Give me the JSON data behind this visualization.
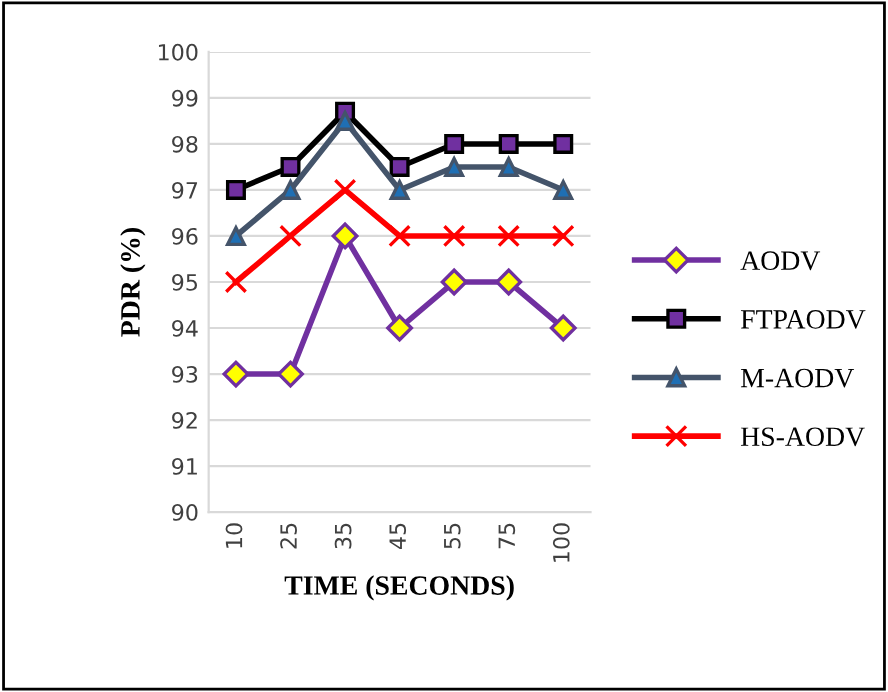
{
  "chart_data": {
    "type": "line",
    "xlabel": "TIME (SECONDS)",
    "ylabel": "PDR (%)",
    "categories": [
      "10",
      "25",
      "35",
      "45",
      "55",
      "75",
      "100"
    ],
    "series": [
      {
        "name": "AODV",
        "color": "#7030a0",
        "marker": "diamond",
        "values": [
          93,
          93,
          96,
          94,
          95,
          95,
          94
        ]
      },
      {
        "name": "FTPAODV",
        "color": "#000000",
        "marker": "square",
        "values": [
          97,
          97.5,
          98.7,
          97.5,
          98,
          98,
          98
        ]
      },
      {
        "name": "M-AODV",
        "color": "#44546a",
        "marker": "triangle",
        "values": [
          96,
          97,
          98.5,
          97,
          97.5,
          97.5,
          97
        ]
      },
      {
        "name": "HS-AODV",
        "color": "#ff0000",
        "marker": "cross",
        "values": [
          95,
          96,
          97,
          96,
          96,
          96,
          96
        ]
      }
    ],
    "ylim": [
      90,
      100
    ],
    "yticks": [
      90,
      91,
      92,
      93,
      94,
      95,
      96,
      97,
      98,
      99,
      100
    ],
    "grid": "y",
    "legend": "right"
  }
}
